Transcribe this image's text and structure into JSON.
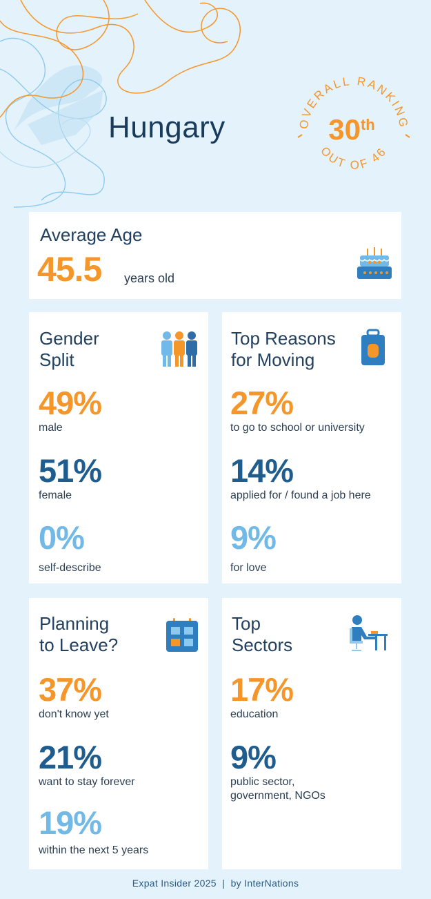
{
  "header": {
    "country": "Hungary",
    "ranking": {
      "top_text": "OVERALL RANKING",
      "rank_number": "30",
      "rank_suffix": "th",
      "bottom_text": "OUT OF 46"
    }
  },
  "average_age": {
    "title": "Average Age",
    "value": "45.5",
    "unit": "years old",
    "icon": "birthday-cake-icon"
  },
  "gender_split": {
    "title_line1": "Gender",
    "title_line2": "Split",
    "icon": "people-group-icon",
    "stats": [
      {
        "value": "49%",
        "label": "male"
      },
      {
        "value": "51%",
        "label": "female"
      },
      {
        "value": "0%",
        "label": "self-describe"
      }
    ]
  },
  "top_reasons": {
    "title_line1": "Top Reasons",
    "title_line2": "for Moving",
    "icon": "suitcase-icon",
    "stats": [
      {
        "value": "27%",
        "label": "to go to school or university"
      },
      {
        "value": "14%",
        "label": "applied for / found a job here"
      },
      {
        "value": "9%",
        "label": "for love"
      }
    ]
  },
  "planning_to_leave": {
    "title_line1": "Planning",
    "title_line2": "to Leave?",
    "icon": "calendar-icon",
    "stats": [
      {
        "value": "37%",
        "label": "don't know yet"
      },
      {
        "value": "21%",
        "label": "want to stay forever"
      },
      {
        "value": "19%",
        "label": "within the next 5 years"
      }
    ]
  },
  "top_sectors": {
    "title_line1": "Top",
    "title_line2": "Sectors",
    "icon": "person-at-desk-icon",
    "stats": [
      {
        "value": "17%",
        "label": "education"
      },
      {
        "value": "9%",
        "label_line1": "public sector,",
        "label_line2": "government, NGOs"
      }
    ]
  },
  "footer": {
    "text": "Expat Insider 2025  |  by InterNations"
  },
  "colors": {
    "background": "#e3f2fb",
    "orange": "#f5962a",
    "dark_blue": "#1f5d8f",
    "light_blue": "#71b9e6",
    "title_navy": "#1b3b5c"
  }
}
